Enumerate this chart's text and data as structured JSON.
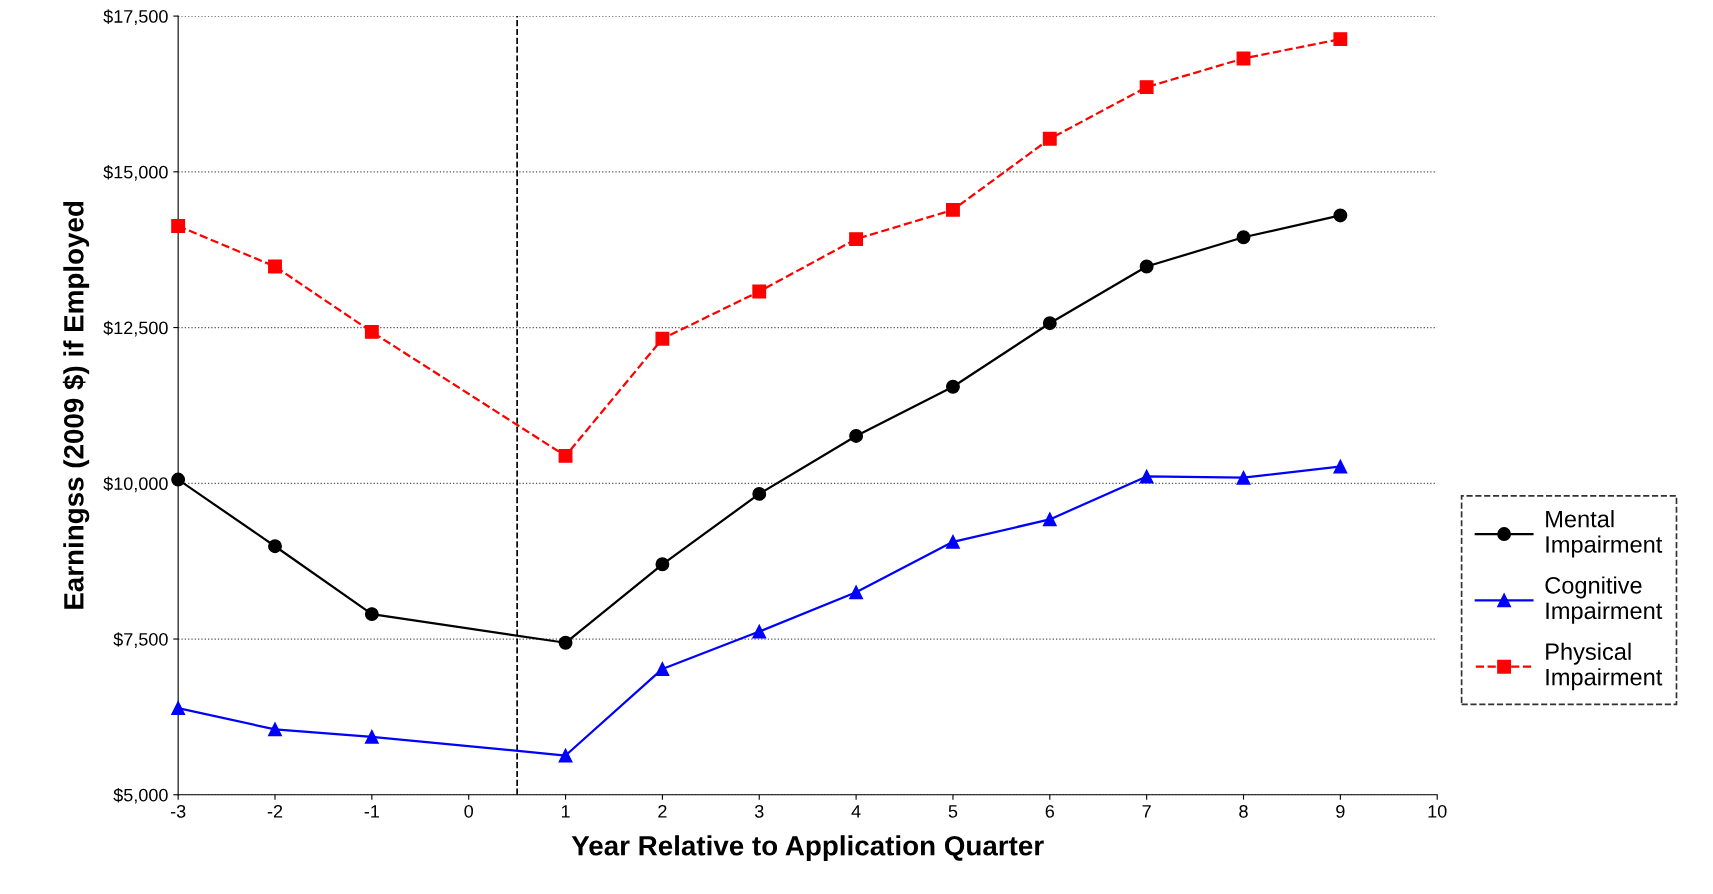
{
  "chart_data": {
    "type": "line",
    "xlabel": "Year Relative to Application Quarter",
    "ylabel": "Earningss (2009 $) if Employed",
    "x": [
      -3,
      -2,
      -1,
      1,
      2,
      3,
      4,
      5,
      6,
      7,
      8,
      9
    ],
    "series": [
      {
        "name": "Mental Impairment",
        "color": "#000000",
        "marker": "circle",
        "line_style": "solid",
        "values": [
          10060,
          8990,
          7900,
          7440,
          8700,
          9830,
          10760,
          11550,
          12570,
          13480,
          13950,
          14300
        ]
      },
      {
        "name": "Cognitive Impairment",
        "color": "#0000ff",
        "marker": "triangle",
        "line_style": "solid",
        "values": [
          6390,
          6050,
          5930,
          5630,
          7020,
          7620,
          8250,
          9060,
          9420,
          10110,
          10090,
          10270
        ]
      },
      {
        "name": "Physical Impairment",
        "color": "#ff0000",
        "marker": "square",
        "line_style": "dashed",
        "values": [
          14130,
          13480,
          12430,
          10440,
          12320,
          13080,
          13920,
          14390,
          15530,
          16360,
          16820,
          17130
        ]
      }
    ],
    "xlim": [
      -3,
      10
    ],
    "xticks": [
      -3,
      -2,
      -1,
      0,
      1,
      2,
      3,
      4,
      5,
      6,
      7,
      8,
      9,
      10
    ],
    "ylim": [
      5000,
      17500
    ],
    "yticks": [
      {
        "value": 5000,
        "label": "$5,000"
      },
      {
        "value": 7500,
        "label": "$7,500"
      },
      {
        "value": 10000,
        "label": "$10,000"
      },
      {
        "value": 12500,
        "label": "$12,500"
      },
      {
        "value": 15000,
        "label": "$15,000"
      },
      {
        "value": 17500,
        "label": "$17,500"
      }
    ],
    "ref_lines": [
      {
        "axis": "x",
        "value": 0.5,
        "color": "#000000",
        "line_style": "dashed"
      }
    ],
    "grid": "y",
    "legend": "right"
  }
}
